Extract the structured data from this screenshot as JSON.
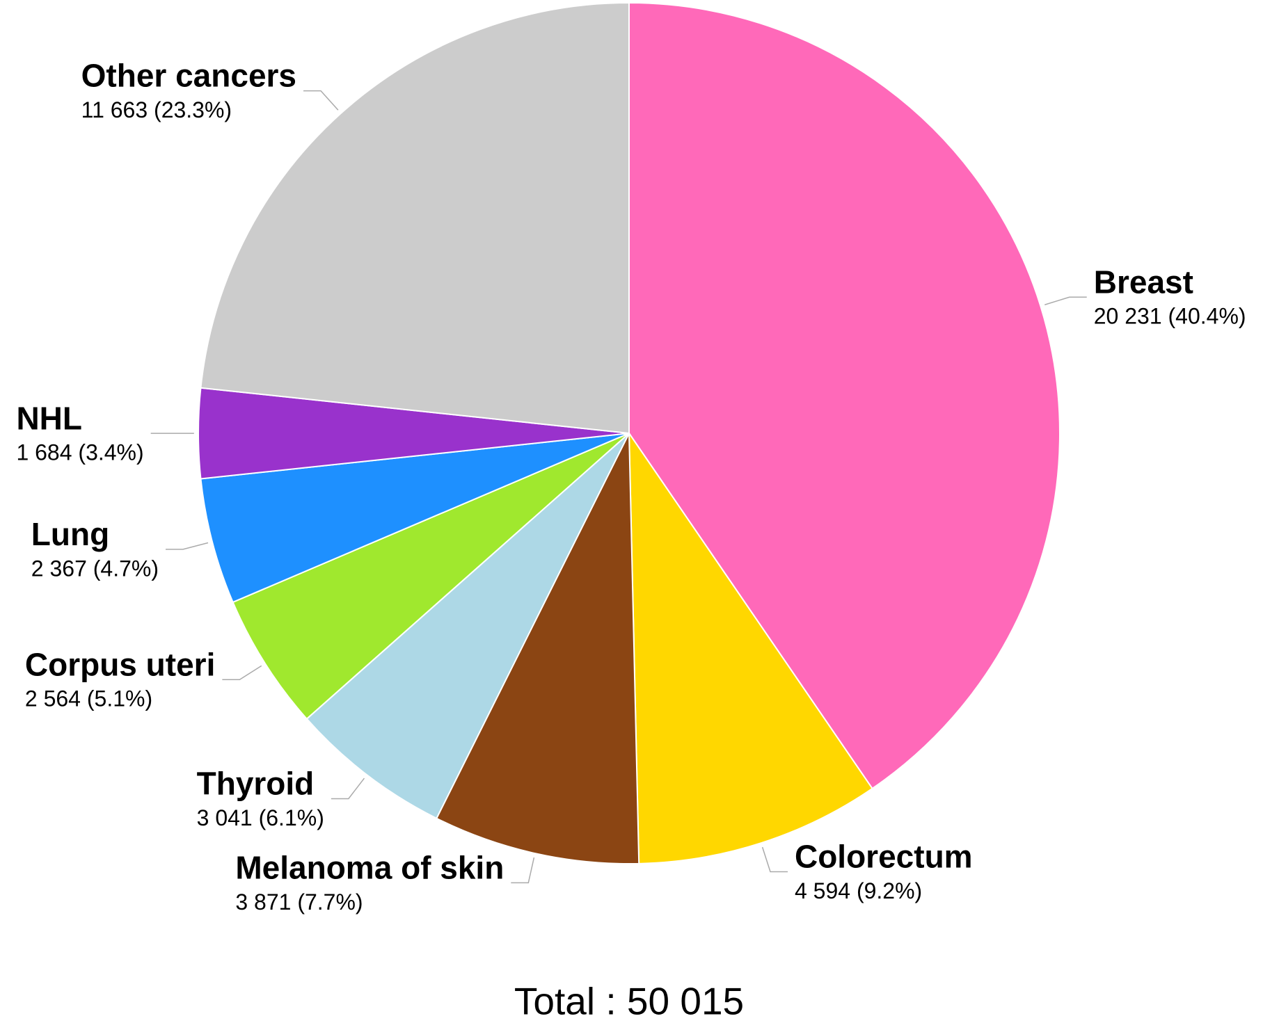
{
  "chart_data": {
    "type": "pie",
    "footer": "Total : 50 015",
    "categories": [
      "Breast",
      "Colorectum",
      "Melanoma of skin",
      "Thyroid",
      "Corpus uteri",
      "Lung",
      "NHL",
      "Other cancers"
    ],
    "values": [
      20231,
      4594,
      3871,
      3041,
      2564,
      2367,
      1684,
      11663
    ],
    "value_labels": [
      "20 231 (40.4%)",
      "4 594 (9.2%)",
      "3 871 (7.7%)",
      "3 041 (6.1%)",
      "2 564 (5.1%)",
      "2 367 (4.7%)",
      "1 684 (3.4%)",
      "11 663 (23.3%)"
    ],
    "colors": [
      "#ff69b9",
      "#ffd700",
      "#8b4513",
      "#add8e6",
      "#a0e82e",
      "#1e90ff",
      "#9932cc",
      "#cccccc"
    ]
  }
}
